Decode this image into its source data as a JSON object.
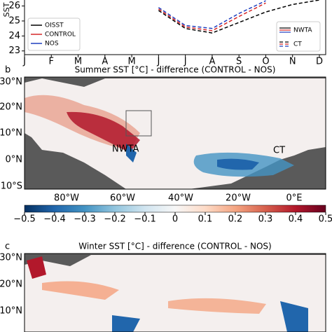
{
  "chart_data": [
    {
      "type": "line",
      "ylabel": "SST",
      "categories": [
        "J",
        "F",
        "M",
        "A",
        "M",
        "J",
        "J",
        "A",
        "S",
        "O",
        "N",
        "D"
      ],
      "series": [
        {
          "name": "OISST",
          "color": "#000000",
          "values": [
            null,
            null,
            null,
            null,
            null,
            25.7,
            24.5,
            24.2,
            24.9,
            25.6,
            26.1,
            26.4
          ]
        },
        {
          "name": "CONTROL",
          "color": "#d62728",
          "values": [
            null,
            null,
            null,
            null,
            null,
            25.8,
            24.6,
            24.35,
            25.3,
            26.2,
            null,
            null
          ]
        },
        {
          "name": "NOS",
          "color": "#1f3fbf",
          "values": [
            null,
            null,
            null,
            null,
            null,
            25.9,
            24.7,
            24.5,
            25.5,
            26.35,
            null,
            null
          ]
        }
      ],
      "line_styles": [
        {
          "name": "NWTA",
          "dash": "solid"
        },
        {
          "name": "CT",
          "dash": "dashed"
        }
      ],
      "series_style": "CT",
      "ylim": [
        22.8,
        26.4
      ],
      "yticks": [
        23,
        24,
        25,
        26
      ]
    },
    {
      "type": "colorbar",
      "xlim": [
        -0.5,
        0.5
      ],
      "colormap": [
        "#053061",
        "#2166ac",
        "#4393c3",
        "#92c5de",
        "#d1e5f0",
        "#f7f7f7",
        "#fddbc7",
        "#f4a582",
        "#d6604d",
        "#b2182b",
        "#67001f"
      ],
      "xticks": [
        {
          "value": -0.5,
          "label": "−0.5"
        },
        {
          "value": -0.4,
          "label": "−0.4"
        },
        {
          "value": -0.3,
          "label": "−0.3"
        },
        {
          "value": -0.2,
          "label": "−0.2"
        },
        {
          "value": -0.1,
          "label": "−0.1"
        },
        0.0,
        0.1,
        0.2,
        0.3,
        0.4,
        0.5
      ]
    }
  ],
  "maps": [
    {
      "label": "b",
      "title": "Summer SST [°C] - difference (CONTROL - NOS)",
      "lat_labels": [
        "30°N",
        "20°N",
        "10°N",
        "0°N",
        "10°S"
      ],
      "lon_labels": [
        "80°W",
        "60°W",
        "40°W",
        "20°W",
        "0°E"
      ],
      "annotations": [
        "NWTA",
        "CT"
      ]
    },
    {
      "label": "c",
      "title": "Winter SST [°C] - difference (CONTROL - NOS)",
      "lat_labels": [
        "30°N",
        "20°N",
        "10°N"
      ]
    }
  ]
}
